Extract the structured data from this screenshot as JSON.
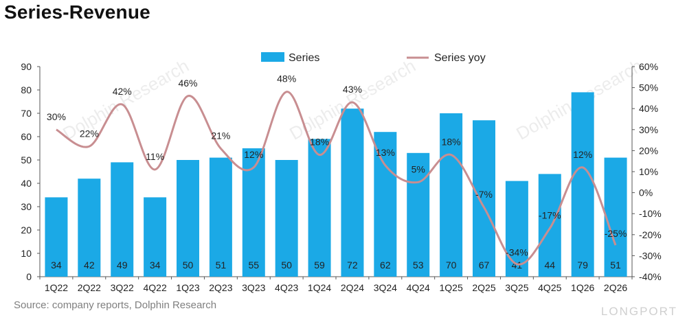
{
  "title": "Series-Revenue",
  "source": "Source: company reports, Dolphin Research",
  "watermark": "Dolphin Research",
  "brand": "LONGPORT",
  "colors": {
    "bar": "#1BA9E6",
    "line": "#C88E91"
  },
  "chart_data": {
    "type": "bar",
    "categories": [
      "1Q22",
      "2Q22",
      "3Q22",
      "4Q22",
      "1Q23",
      "2Q23",
      "3Q23",
      "4Q23",
      "1Q24",
      "2Q24",
      "3Q24",
      "4Q24",
      "1Q25",
      "2Q25",
      "3Q25",
      "4Q25",
      "1Q26",
      "2Q26"
    ],
    "series": [
      {
        "name": "Series",
        "type": "bar",
        "axis": "left",
        "values": [
          34,
          42,
          49,
          34,
          50,
          51,
          55,
          50,
          59,
          72,
          62,
          53,
          70,
          67,
          41,
          44,
          79,
          51
        ],
        "labels": [
          "34",
          "42",
          "49",
          "34",
          "50",
          "51",
          "55",
          "50",
          "59",
          "72",
          "62",
          "53",
          "70",
          "67",
          "41",
          "44",
          "79",
          "51"
        ]
      },
      {
        "name": "Series yoy",
        "type": "line",
        "axis": "right",
        "values": [
          30,
          22,
          42,
          11,
          46,
          21,
          12,
          48,
          18,
          43,
          13,
          5,
          18,
          -7,
          -34,
          -17,
          12,
          -25
        ],
        "labels": [
          "30%",
          "22%",
          "42%",
          "11%",
          "46%",
          "21%",
          "12%",
          "48%",
          "18%",
          "43%",
          "13%",
          "5%",
          "18%",
          "-7%",
          "-34%",
          "-17%",
          "12%",
          "-25%"
        ]
      }
    ],
    "ylim": [
      0,
      90
    ],
    "y_ticks": [
      "0",
      "10",
      "20",
      "30",
      "40",
      "50",
      "60",
      "70",
      "80",
      "90"
    ],
    "y2lim": [
      -40,
      60
    ],
    "y2_ticks": [
      "-40%",
      "-30%",
      "-20%",
      "-10%",
      "0%",
      "10%",
      "20%",
      "30%",
      "40%",
      "50%",
      "60%"
    ],
    "legend": "top-center",
    "grid": false
  }
}
